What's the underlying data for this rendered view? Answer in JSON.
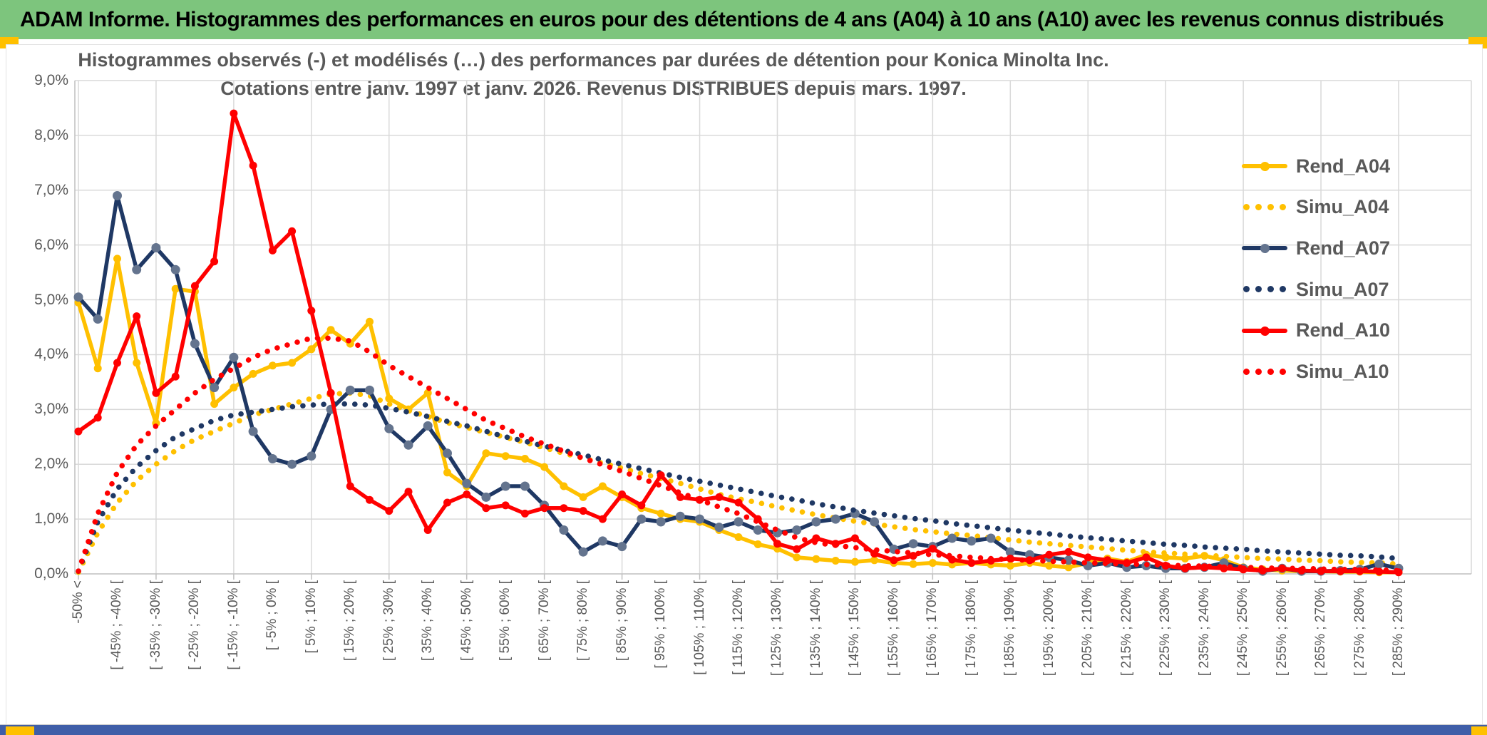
{
  "window": {
    "header_title": "ADAM Informe. Histogrammes des performances en euros pour des détentions de 4 ans (A04) à 10 ans (A10) avec les revenus connus distribués",
    "header_bg": "#7DC57D",
    "accent_gold": "#FFC000",
    "footer_bar_color": "#3F5EA8"
  },
  "chart_data": {
    "type": "line",
    "title_line1": "Histogrammes observés (-) et modélisés (…) des performances par durées de détention pour Konica Minolta Inc.",
    "title_line2": "Cotations entre janv. 1997 et janv. 2026. Revenus DISTRIBUES depuis mars. 1997.",
    "xlabel": "",
    "ylabel": "",
    "ylim": [
      0,
      9
    ],
    "grid": true,
    "legend_position": "right-inside",
    "y_tick_labels": [
      "0,0%",
      "1,0%",
      "2,0%",
      "3,0%",
      "4,0%",
      "5,0%",
      "6,0%",
      "7,0%",
      "8,0%",
      "9,0%"
    ],
    "n_bins": 69,
    "label_every_n_bins": 2,
    "grid_every_n_bins": 4,
    "x_tick_labels": [
      "-50% <",
      "[ -45% ; -40% [",
      "[ -35% ; -30% [",
      "[ -25% ; -20% [",
      "[ -15% ; -10% [",
      "[ -5% ; 0% [",
      "[ 5% ; 10% [",
      "[ 15% ; 20% [",
      "[ 25% ; 30% [",
      "[ 35% ; 40% [",
      "[ 45% ; 50% [",
      "[ 55% ; 60% [",
      "[ 65% ; 70% [",
      "[ 75% ; 80% [",
      "[ 85% ; 90% [",
      "[ 95% ; 100% [",
      "[ 105% ; 110% [",
      "[ 115% ; 120% [",
      "[ 125% ; 130% [",
      "[ 135% ; 140% [",
      "[ 145% ; 150% [",
      "[ 155% ; 160% [",
      "[ 165% ; 170% [",
      "[ 175% ; 180% [",
      "[ 185% ; 190% [",
      "[ 195% ; 200% [",
      "[ 205% ; 210% [",
      "[ 215% ; 220% [",
      "[ 225% ; 230% [",
      "[ 235% ; 240% [",
      "[ 245% ; 250% [",
      "[ 255% ; 260% [",
      "[ 265% ; 270% [",
      "[ 275% ; 280% [",
      "[ 285% ; 290% ["
    ],
    "series": [
      {
        "name": "Rend_A04",
        "style": "solid",
        "color": "#FFC000",
        "marker_color": "#FFC000",
        "values": [
          4.95,
          3.75,
          5.75,
          3.85,
          2.75,
          5.2,
          5.15,
          3.1,
          3.4,
          3.65,
          3.8,
          3.85,
          4.1,
          4.45,
          4.2,
          4.6,
          3.2,
          3.0,
          3.3,
          1.85,
          1.6,
          2.2,
          2.15,
          2.1,
          1.95,
          1.6,
          1.4,
          1.6,
          1.4,
          1.2,
          1.1,
          1.0,
          0.95,
          0.8,
          0.67,
          0.54,
          0.46,
          0.3,
          0.27,
          0.24,
          0.22,
          0.25,
          0.2,
          0.18,
          0.2,
          0.17,
          0.2,
          0.17,
          0.15,
          0.2,
          0.15,
          0.12,
          0.2,
          0.28,
          0.22,
          0.35,
          0.3,
          0.28,
          0.33,
          0.25,
          0.12,
          0.08,
          0.06,
          0.05,
          0.05,
          0.04,
          0.04,
          0.03,
          0.03
        ]
      },
      {
        "name": "Simu_A04",
        "style": "dotted",
        "color": "#FFC000",
        "values": [
          0.03,
          0.75,
          1.3,
          1.7,
          2.0,
          2.25,
          2.45,
          2.6,
          2.75,
          2.9,
          3.0,
          3.1,
          3.2,
          3.28,
          3.3,
          3.25,
          3.1,
          2.98,
          2.87,
          2.76,
          2.67,
          2.58,
          2.49,
          2.4,
          2.3,
          2.2,
          2.11,
          2.02,
          1.93,
          1.83,
          1.74,
          1.65,
          1.55,
          1.45,
          1.37,
          1.3,
          1.22,
          1.15,
          1.08,
          1.02,
          0.96,
          0.91,
          0.86,
          0.81,
          0.77,
          0.73,
          0.7,
          0.66,
          0.62,
          0.58,
          0.55,
          0.52,
          0.49,
          0.46,
          0.43,
          0.4,
          0.38,
          0.36,
          0.34,
          0.32,
          0.3,
          0.28,
          0.27,
          0.25,
          0.24,
          0.22,
          0.21,
          0.2,
          0.18
        ]
      },
      {
        "name": "Rend_A07",
        "style": "solid",
        "color": "#1F3864",
        "marker_color": "#64748E",
        "values": [
          5.05,
          4.65,
          6.9,
          5.55,
          5.95,
          5.55,
          4.2,
          3.4,
          3.95,
          2.6,
          2.1,
          2.0,
          2.15,
          3.0,
          3.35,
          3.35,
          2.65,
          2.35,
          2.7,
          2.2,
          1.65,
          1.4,
          1.6,
          1.6,
          1.25,
          0.8,
          0.4,
          0.6,
          0.5,
          1.0,
          0.95,
          1.05,
          1.0,
          0.85,
          0.95,
          0.8,
          0.75,
          0.8,
          0.95,
          1.0,
          1.1,
          0.95,
          0.45,
          0.55,
          0.5,
          0.65,
          0.6,
          0.65,
          0.4,
          0.35,
          0.3,
          0.25,
          0.15,
          0.2,
          0.12,
          0.15,
          0.1,
          0.1,
          0.12,
          0.2,
          0.1,
          0.05,
          0.1,
          0.05,
          0.05,
          0.06,
          0.08,
          0.18,
          0.1
        ]
      },
      {
        "name": "Simu_A07",
        "style": "dotted",
        "color": "#1F3864",
        "values": [
          0.05,
          0.95,
          1.55,
          1.95,
          2.25,
          2.5,
          2.65,
          2.8,
          2.9,
          2.95,
          3.0,
          3.05,
          3.08,
          3.1,
          3.1,
          3.08,
          3.02,
          2.95,
          2.87,
          2.78,
          2.7,
          2.6,
          2.5,
          2.42,
          2.33,
          2.25,
          2.17,
          2.08,
          2.0,
          1.92,
          1.84,
          1.76,
          1.69,
          1.62,
          1.55,
          1.48,
          1.41,
          1.35,
          1.28,
          1.22,
          1.16,
          1.11,
          1.06,
          1.01,
          0.97,
          0.92,
          0.88,
          0.84,
          0.8,
          0.76,
          0.73,
          0.69,
          0.66,
          0.63,
          0.6,
          0.57,
          0.54,
          0.52,
          0.49,
          0.47,
          0.45,
          0.42,
          0.4,
          0.38,
          0.36,
          0.34,
          0.33,
          0.31,
          0.28
        ]
      },
      {
        "name": "Rend_A10",
        "style": "solid",
        "color": "#FF0000",
        "marker_color": "#FF0000",
        "values": [
          2.6,
          2.85,
          3.85,
          4.7,
          3.3,
          3.6,
          5.25,
          5.7,
          8.4,
          7.45,
          5.9,
          6.25,
          4.8,
          3.3,
          1.6,
          1.35,
          1.15,
          1.5,
          0.8,
          1.3,
          1.45,
          1.2,
          1.25,
          1.1,
          1.2,
          1.2,
          1.15,
          1.0,
          1.45,
          1.25,
          1.8,
          1.4,
          1.35,
          1.4,
          1.3,
          1.0,
          0.55,
          0.45,
          0.65,
          0.55,
          0.65,
          0.37,
          0.25,
          0.33,
          0.46,
          0.26,
          0.2,
          0.24,
          0.28,
          0.25,
          0.35,
          0.4,
          0.3,
          0.25,
          0.2,
          0.3,
          0.15,
          0.1,
          0.12,
          0.1,
          0.08,
          0.06,
          0.1,
          0.06,
          0.05,
          0.05,
          0.05,
          0.04,
          0.03
        ]
      },
      {
        "name": "Simu_A10",
        "style": "dotted",
        "color": "#FF0000",
        "values": [
          0.05,
          1.1,
          1.85,
          2.35,
          2.7,
          3.0,
          3.3,
          3.55,
          3.75,
          3.95,
          4.1,
          4.2,
          4.3,
          4.3,
          4.25,
          4.05,
          3.8,
          3.6,
          3.4,
          3.2,
          3.0,
          2.8,
          2.65,
          2.5,
          2.37,
          2.24,
          2.11,
          1.99,
          1.87,
          1.74,
          1.61,
          1.48,
          1.35,
          1.22,
          1.1,
          0.95,
          0.8,
          0.66,
          0.57,
          0.52,
          0.48,
          0.44,
          0.41,
          0.38,
          0.35,
          0.33,
          0.3,
          0.28,
          0.26,
          0.25,
          0.23,
          0.22,
          0.2,
          0.19,
          0.18,
          0.17,
          0.16,
          0.15,
          0.14,
          0.13,
          0.12,
          0.11,
          0.1,
          0.1,
          0.09,
          0.08,
          0.08,
          0.07,
          0.06
        ]
      }
    ],
    "legend": [
      "Rend_A04",
      "Simu_A04",
      "Rend_A07",
      "Simu_A07",
      "Rend_A10",
      "Simu_A10"
    ]
  }
}
